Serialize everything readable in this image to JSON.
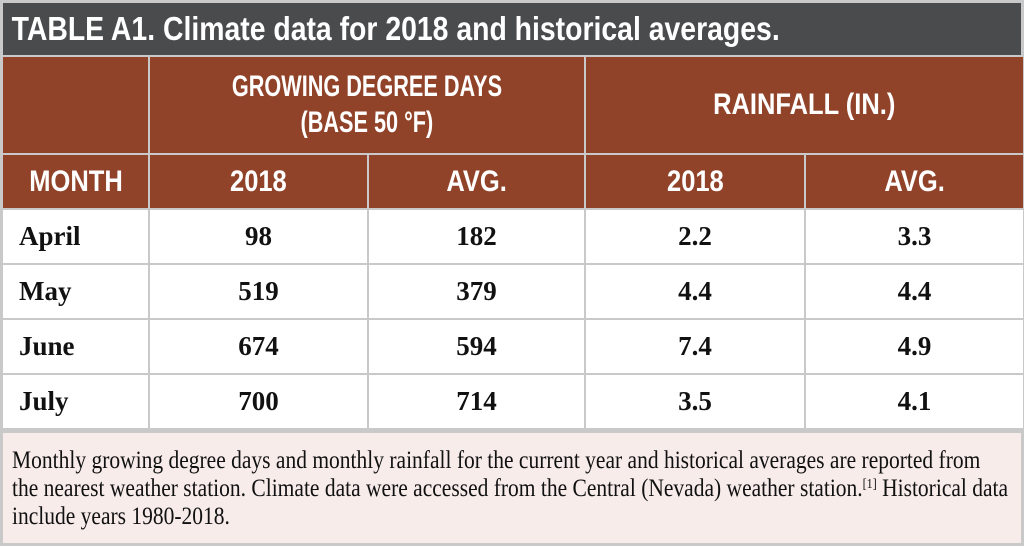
{
  "title": "TABLE A1. Climate data for 2018 and historical averages.",
  "group_headers": {
    "gdd_line1": "GROWING DEGREE DAYS",
    "gdd_line2": "(BASE 50 °F)",
    "rainfall": "RAINFALL (IN.)"
  },
  "columns": [
    "MONTH",
    "2018",
    "AVG.",
    "2018",
    "AVG."
  ],
  "rows": [
    [
      "April",
      "98",
      "182",
      "2.2",
      "3.3"
    ],
    [
      "May",
      "519",
      "379",
      "4.4",
      "4.4"
    ],
    [
      "June",
      "674",
      "594",
      "7.4",
      "4.9"
    ],
    [
      "July",
      "700",
      "714",
      "3.5",
      "4.1"
    ]
  ],
  "footnote": {
    "text_before": "Monthly growing degree days and monthly rainfall for the current year and historical averages are reported from the nearest weather station. Climate data were accessed from the Central (Nevada) weather station.",
    "ref": "[1]",
    "text_after": " Historical data include years 1980-2018."
  },
  "colors": {
    "title_bg": "#4a4b4d",
    "header_bg": "#91432a",
    "footer_bg": "#f7ecea",
    "border": "#c9c9c9"
  }
}
